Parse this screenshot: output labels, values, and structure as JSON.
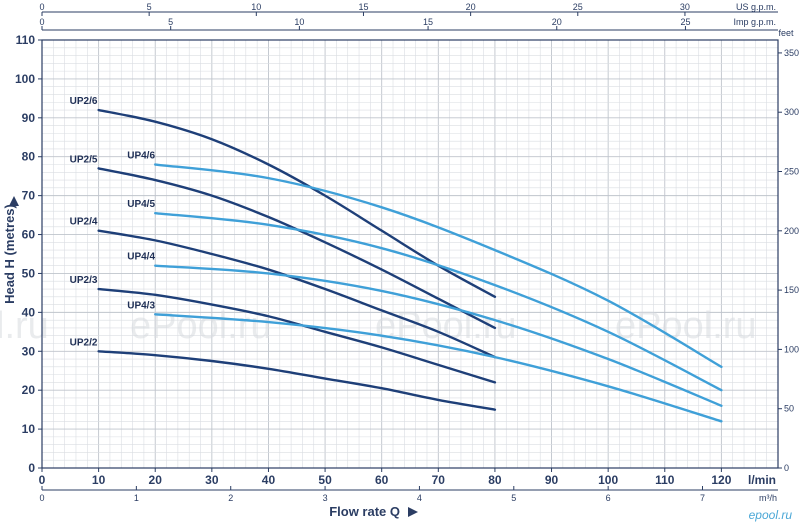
{
  "chart_data": {
    "type": "line",
    "xlabel": "Flow rate Q",
    "ylabel": "Head H (metres)",
    "x_unit": "l/min",
    "xlim": [
      0,
      130
    ],
    "ylim": [
      0,
      110
    ],
    "x_ticks": [
      0,
      10,
      20,
      30,
      40,
      50,
      60,
      70,
      80,
      90,
      100,
      110,
      120
    ],
    "y_ticks": [
      0,
      10,
      20,
      30,
      40,
      50,
      60,
      70,
      80,
      90,
      100,
      110
    ],
    "secondary_axes": {
      "us_gpm": {
        "label": "US g.p.m.",
        "ticks": [
          0,
          5,
          10,
          15,
          20,
          25,
          30
        ]
      },
      "imp_gpm": {
        "label": "Imp g.p.m.",
        "ticks": [
          0,
          5,
          10,
          15,
          20,
          25
        ]
      },
      "m3h": {
        "label": "m³/h",
        "ticks": [
          0,
          1,
          2,
          3,
          4,
          5,
          6,
          7
        ]
      },
      "feet": {
        "label": "feet",
        "ticks": [
          0,
          50,
          100,
          150,
          200,
          250,
          300,
          350
        ]
      }
    },
    "grid": true,
    "series": [
      {
        "name": "UP2/6",
        "color": "#1e3f78",
        "x": [
          10,
          20,
          30,
          40,
          50,
          60,
          70,
          80
        ],
        "y": [
          92,
          89,
          84.5,
          78,
          70,
          61,
          52,
          44
        ]
      },
      {
        "name": "UP2/5",
        "color": "#1e3f78",
        "x": [
          10,
          20,
          30,
          40,
          50,
          60,
          70,
          80
        ],
        "y": [
          77,
          74,
          70,
          64.5,
          58,
          51,
          43.5,
          36
        ]
      },
      {
        "name": "UP2/4",
        "color": "#1e3f78",
        "x": [
          10,
          20,
          30,
          40,
          50,
          60,
          70,
          80
        ],
        "y": [
          61,
          58.5,
          55,
          51,
          46,
          40.5,
          35,
          28.5
        ]
      },
      {
        "name": "UP2/3",
        "color": "#1e3f78",
        "x": [
          10,
          20,
          30,
          40,
          50,
          60,
          70,
          80
        ],
        "y": [
          46,
          44.5,
          42,
          39,
          35,
          31,
          26.5,
          22
        ]
      },
      {
        "name": "UP2/2",
        "color": "#1e3f78",
        "x": [
          10,
          20,
          30,
          40,
          50,
          60,
          70,
          80
        ],
        "y": [
          30,
          29,
          27.5,
          25.5,
          23,
          20.5,
          17.5,
          15
        ]
      },
      {
        "name": "UP4/6",
        "color": "#3fa0d8",
        "x": [
          20,
          40,
          60,
          80,
          100,
          120
        ],
        "y": [
          78,
          74.5,
          67,
          56,
          43,
          26
        ]
      },
      {
        "name": "UP4/5",
        "color": "#3fa0d8",
        "x": [
          20,
          40,
          60,
          80,
          100,
          120
        ],
        "y": [
          65.5,
          62.5,
          56.5,
          47,
          35,
          20
        ]
      },
      {
        "name": "UP4/4",
        "color": "#3fa0d8",
        "x": [
          20,
          40,
          60,
          80,
          100,
          120
        ],
        "y": [
          52,
          50,
          45.5,
          38,
          28,
          16
        ]
      },
      {
        "name": "UP4/3",
        "color": "#3fa0d8",
        "x": [
          20,
          40,
          60,
          80,
          100,
          120
        ],
        "y": [
          39.5,
          37.5,
          34,
          28.5,
          21,
          12
        ]
      }
    ]
  },
  "watermarks": [
    "l.ru",
    "ePool.ru",
    "ePool.ru",
    "ePool.ru"
  ],
  "logo_text": "epool.ru"
}
